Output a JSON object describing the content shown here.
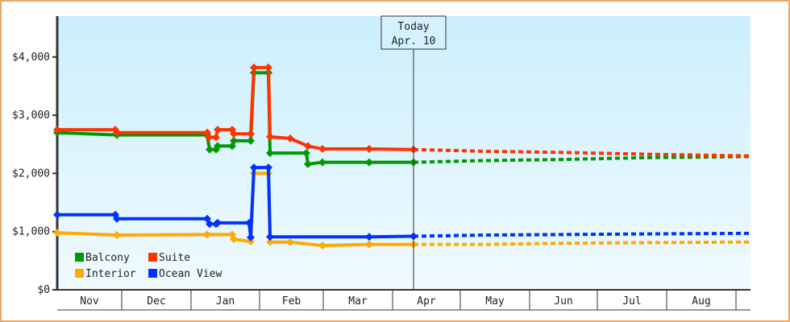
{
  "chart_data": {
    "type": "line",
    "title": "",
    "xlabel": "",
    "ylabel": "",
    "ylim": [
      0,
      4600
    ],
    "y_ticks": [
      "$0",
      "$1,000",
      "$2,000",
      "$3,000",
      "$4,000"
    ],
    "x_ticks": [
      "Nov",
      "Dec",
      "Jan",
      "Feb",
      "Mar",
      "Apr",
      "May",
      "Jun",
      "Jul",
      "Aug"
    ],
    "today_marker": {
      "line1": "Today",
      "line2": "Apr. 10"
    },
    "legend": [
      "Balcony",
      "Suite",
      "Interior",
      "Ocean View"
    ],
    "legend_position": "lower-left inside",
    "series": [
      {
        "name": "Balcony",
        "color": "#009900",
        "x": [
          71,
          145,
          257,
          260,
          268,
          270,
          288,
          290,
          311,
          315,
          333,
          335,
          380,
          382,
          400,
          458,
          513
        ],
        "values": [
          2700,
          2660,
          2660,
          2410,
          2410,
          2470,
          2470,
          2560,
          2560,
          3730,
          3730,
          2350,
          2350,
          2160,
          2190,
          2190,
          2190
        ],
        "forecast_x": [
          513,
          600,
          700,
          800,
          930
        ],
        "forecast_values": [
          2190,
          2220,
          2240,
          2270,
          2290
        ]
      },
      {
        "name": "Suite",
        "color": "#ff3300",
        "x": [
          71,
          143,
          145,
          257,
          259,
          268,
          270,
          288,
          290,
          311,
          315,
          333,
          335,
          360,
          382,
          400,
          458,
          513
        ],
        "values": [
          2750,
          2750,
          2700,
          2700,
          2620,
          2620,
          2750,
          2750,
          2680,
          2680,
          3820,
          3820,
          2630,
          2600,
          2470,
          2420,
          2420,
          2410
        ],
        "forecast_x": [
          513,
          600,
          700,
          800,
          930
        ],
        "forecast_values": [
          2410,
          2380,
          2360,
          2330,
          2300
        ]
      },
      {
        "name": "Interior",
        "color": "#ffaa00",
        "x": [
          71,
          145,
          257,
          288,
          290,
          311,
          315,
          333,
          335,
          360,
          400,
          458,
          513
        ],
        "values": [
          980,
          940,
          950,
          950,
          870,
          830,
          2000,
          2000,
          820,
          820,
          760,
          780,
          780
        ],
        "forecast_x": [
          513,
          600,
          700,
          800,
          930
        ],
        "forecast_values": [
          780,
          780,
          800,
          810,
          820
        ]
      },
      {
        "name": "Ocean View",
        "color": "#0033ff",
        "x": [
          71,
          143,
          145,
          257,
          260,
          268,
          270,
          309,
          311,
          315,
          333,
          335,
          458,
          513
        ],
        "values": [
          1290,
          1290,
          1220,
          1220,
          1130,
          1130,
          1150,
          1150,
          900,
          2100,
          2100,
          910,
          910,
          920
        ],
        "forecast_x": [
          513,
          600,
          700,
          800,
          930
        ],
        "forecast_values": [
          920,
          940,
          950,
          960,
          970
        ]
      }
    ]
  }
}
